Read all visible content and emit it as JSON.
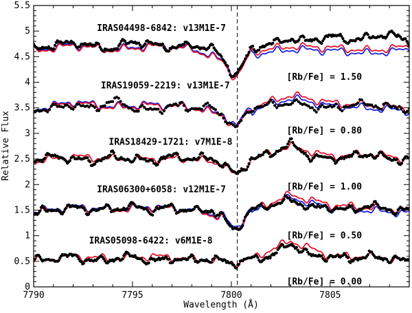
{
  "chart_data": {
    "type": "line",
    "title": "",
    "xlabel": "Wavelength (Å)",
    "ylabel": "Relative Flux",
    "xlim": [
      7790,
      7809
    ],
    "ylim": [
      0,
      5.5
    ],
    "x_ticks": [
      7790,
      7795,
      7800,
      7805
    ],
    "x_tick_labels": [
      "7790",
      "7795",
      "7800",
      "7805"
    ],
    "y_ticks": [
      0,
      0.5,
      1,
      1.5,
      2,
      2.5,
      3,
      3.5,
      4,
      4.5,
      5,
      5.5
    ],
    "y_tick_labels": [
      "0",
      "0.5",
      "1",
      "1.5",
      "2",
      "2.5",
      "3",
      "3.5",
      "4",
      "4.5",
      "5",
      "5.5"
    ],
    "grid": false,
    "reference_line": {
      "x": 7800.3,
      "style": "dashed",
      "color": "#000000"
    },
    "colors": {
      "observed": "#000000",
      "model_red": "#e8102a",
      "model_blue": "#1a22e0"
    },
    "panels": [
      {
        "star_label": "IRAS04498-6842: v13M1E-7",
        "rb_label": "[Rb/Fe] = 1.50",
        "label_x": 7793.2,
        "label_y": 5.0,
        "rb_x": 7802.8,
        "rb_y": 4.05,
        "offset": 4.7,
        "dip_depth": 0.55,
        "has_blue": true,
        "dot_style": "dense",
        "series": [
          {
            "name": "observed",
            "x": [
              7790.0,
              7791.0,
              7792.0,
              7793.0,
              7794.0,
              7795.0,
              7796.0,
              7797.0,
              7798.0,
              7799.0,
              7799.6,
              7800.0,
              7800.3,
              7800.6,
              7801.0,
              7802.0,
              7803.0,
              7804.0,
              7805.0,
              7806.0,
              7807.0,
              7808.0,
              7809.0
            ],
            "y": [
              4.65,
              4.72,
              4.78,
              4.7,
              4.66,
              4.8,
              4.73,
              4.68,
              4.72,
              4.67,
              4.45,
              4.2,
              4.15,
              4.35,
              4.65,
              4.75,
              4.85,
              4.8,
              4.9,
              4.82,
              4.88,
              4.95,
              4.78
            ]
          },
          {
            "name": "model-high-rb",
            "x": [
              7790.0,
              7792.0,
              7794.0,
              7796.0,
              7798.0,
              7799.6,
              7800.0,
              7800.3,
              7800.6,
              7801.0,
              7803.0,
              7805.0,
              7807.0,
              7809.0
            ],
            "y": [
              4.6,
              4.72,
              4.62,
              4.7,
              4.65,
              4.4,
              4.15,
              4.1,
              4.3,
              4.6,
              4.7,
              4.68,
              4.62,
              4.7
            ]
          }
        ]
      },
      {
        "star_label": "IRAS19059-2219: v13M1E-7",
        "rb_label": "[Rb/Fe] = 0.80",
        "label_x": 7793.4,
        "label_y": 3.88,
        "rb_x": 7802.8,
        "rb_y": 3.0,
        "offset": 3.5,
        "dip_depth": 0.42,
        "has_blue": true,
        "dot_style": "sparse",
        "series": [
          {
            "name": "observed",
            "x": [
              7790.0,
              7791.0,
              7792.0,
              7793.0,
              7794.0,
              7795.0,
              7796.0,
              7797.0,
              7798.0,
              7799.0,
              7799.6,
              7800.0,
              7800.3,
              7800.6,
              7801.0,
              7802.0,
              7803.0,
              7804.0,
              7805.0,
              7806.0,
              7807.0,
              7808.0,
              7809.0
            ],
            "y": [
              3.45,
              3.5,
              3.55,
              3.48,
              3.65,
              3.5,
              3.45,
              3.55,
              3.5,
              3.52,
              3.35,
              3.15,
              3.1,
              3.3,
              3.5,
              3.55,
              3.6,
              3.52,
              3.5,
              3.55,
              3.58,
              3.5,
              3.5
            ]
          },
          {
            "name": "model-high-rb",
            "x": [
              7790.0,
              7792.0,
              7794.0,
              7796.0,
              7798.0,
              7799.6,
              7800.0,
              7800.3,
              7800.6,
              7801.0,
              7803.0,
              7805.0,
              7807.0,
              7809.0
            ],
            "y": [
              3.45,
              3.6,
              3.5,
              3.55,
              3.5,
              3.35,
              3.15,
              3.1,
              3.3,
              3.5,
              3.75,
              3.6,
              3.55,
              3.5
            ]
          }
        ]
      },
      {
        "star_label": "IRAS18429-1721: v7M1E-8",
        "rb_label": "[Rb/Fe] = 1.00",
        "label_x": 7793.8,
        "label_y": 2.78,
        "rb_x": 7802.8,
        "rb_y": 1.9,
        "offset": 2.5,
        "dip_depth": 0.32,
        "has_blue": false,
        "dot_style": "dense",
        "series": [
          {
            "name": "observed",
            "x": [
              7790.0,
              7791.0,
              7792.0,
              7793.0,
              7794.0,
              7795.0,
              7796.0,
              7797.0,
              7798.0,
              7799.0,
              7799.6,
              7800.0,
              7800.3,
              7800.6,
              7801.0,
              7802.0,
              7803.0,
              7804.0,
              7805.0,
              7806.0,
              7807.0,
              7808.0,
              7809.0
            ],
            "y": [
              2.48,
              2.55,
              2.5,
              2.45,
              2.55,
              2.5,
              2.45,
              2.55,
              2.5,
              2.52,
              2.4,
              2.25,
              2.2,
              2.3,
              2.5,
              2.6,
              2.8,
              2.55,
              2.5,
              2.55,
              2.6,
              2.5,
              2.5
            ]
          },
          {
            "name": "model-high-rb",
            "x": [
              7790.0,
              7792.0,
              7794.0,
              7796.0,
              7798.0,
              7799.6,
              7800.0,
              7800.3,
              7800.6,
              7801.0,
              7803.0,
              7805.0,
              7807.0,
              7809.0
            ],
            "y": [
              2.45,
              2.55,
              2.5,
              2.5,
              2.5,
              2.4,
              2.22,
              2.18,
              2.3,
              2.5,
              2.75,
              2.55,
              2.6,
              2.5
            ]
          }
        ]
      },
      {
        "star_label": "IRAS06300+6058: v12M1E-7",
        "rb_label": "[Rb/Fe] = 0.50",
        "label_x": 7793.2,
        "label_y": 1.85,
        "rb_x": 7802.8,
        "rb_y": 0.95,
        "offset": 1.5,
        "dip_depth": 0.38,
        "has_blue": true,
        "dot_style": "dense",
        "series": [
          {
            "name": "observed",
            "x": [
              7790.0,
              7791.0,
              7792.0,
              7793.0,
              7794.0,
              7795.0,
              7796.0,
              7797.0,
              7798.0,
              7799.0,
              7799.6,
              7800.0,
              7800.3,
              7800.6,
              7801.0,
              7802.0,
              7803.0,
              7804.0,
              7805.0,
              7806.0,
              7807.0,
              7808.0,
              7809.0
            ],
            "y": [
              1.45,
              1.5,
              1.55,
              1.5,
              1.52,
              1.58,
              1.5,
              1.55,
              1.48,
              1.5,
              1.35,
              1.15,
              1.12,
              1.3,
              1.5,
              1.6,
              1.7,
              1.55,
              1.55,
              1.5,
              1.6,
              1.5,
              1.5
            ]
          },
          {
            "name": "model-high-rb",
            "x": [
              7790.0,
              7792.0,
              7794.0,
              7796.0,
              7798.0,
              7799.6,
              7800.0,
              7800.3,
              7800.6,
              7801.0,
              7803.0,
              7805.0,
              7807.0,
              7809.0
            ],
            "y": [
              1.45,
              1.55,
              1.5,
              1.55,
              1.5,
              1.35,
              1.15,
              1.12,
              1.3,
              1.5,
              1.8,
              1.6,
              1.55,
              1.5
            ]
          }
        ]
      },
      {
        "star_label": "IRAS05098-6422: v6M1E-8",
        "rb_label": "[Rb/Fe] = 0.00",
        "label_x": 7792.8,
        "label_y": 0.85,
        "rb_x": 7802.8,
        "rb_y": 0.05,
        "offset": 0.55,
        "dip_depth": 0.08,
        "has_blue": false,
        "dot_style": "dense",
        "series": [
          {
            "name": "observed",
            "x": [
              7790.0,
              7791.0,
              7792.0,
              7793.0,
              7794.0,
              7795.0,
              7796.0,
              7797.0,
              7798.0,
              7799.0,
              7799.6,
              7800.0,
              7800.3,
              7800.6,
              7801.0,
              7802.0,
              7803.0,
              7804.0,
              7805.0,
              7806.0,
              7807.0,
              7808.0,
              7809.0
            ],
            "y": [
              0.52,
              0.55,
              0.6,
              0.5,
              0.55,
              0.6,
              0.5,
              0.55,
              0.52,
              0.55,
              0.5,
              0.48,
              0.47,
              0.5,
              0.55,
              0.6,
              0.85,
              0.6,
              0.6,
              0.55,
              0.6,
              0.55,
              0.5
            ]
          },
          {
            "name": "model-high-rb",
            "x": [
              7790.0,
              7792.0,
              7794.0,
              7796.0,
              7798.0,
              7799.6,
              7800.0,
              7800.3,
              7800.6,
              7801.0,
              7803.0,
              7805.0,
              7807.0,
              7809.0
            ],
            "y": [
              0.5,
              0.6,
              0.55,
              0.6,
              0.55,
              0.5,
              0.48,
              0.47,
              0.5,
              0.55,
              0.9,
              0.6,
              0.6,
              0.5
            ]
          }
        ]
      }
    ]
  }
}
